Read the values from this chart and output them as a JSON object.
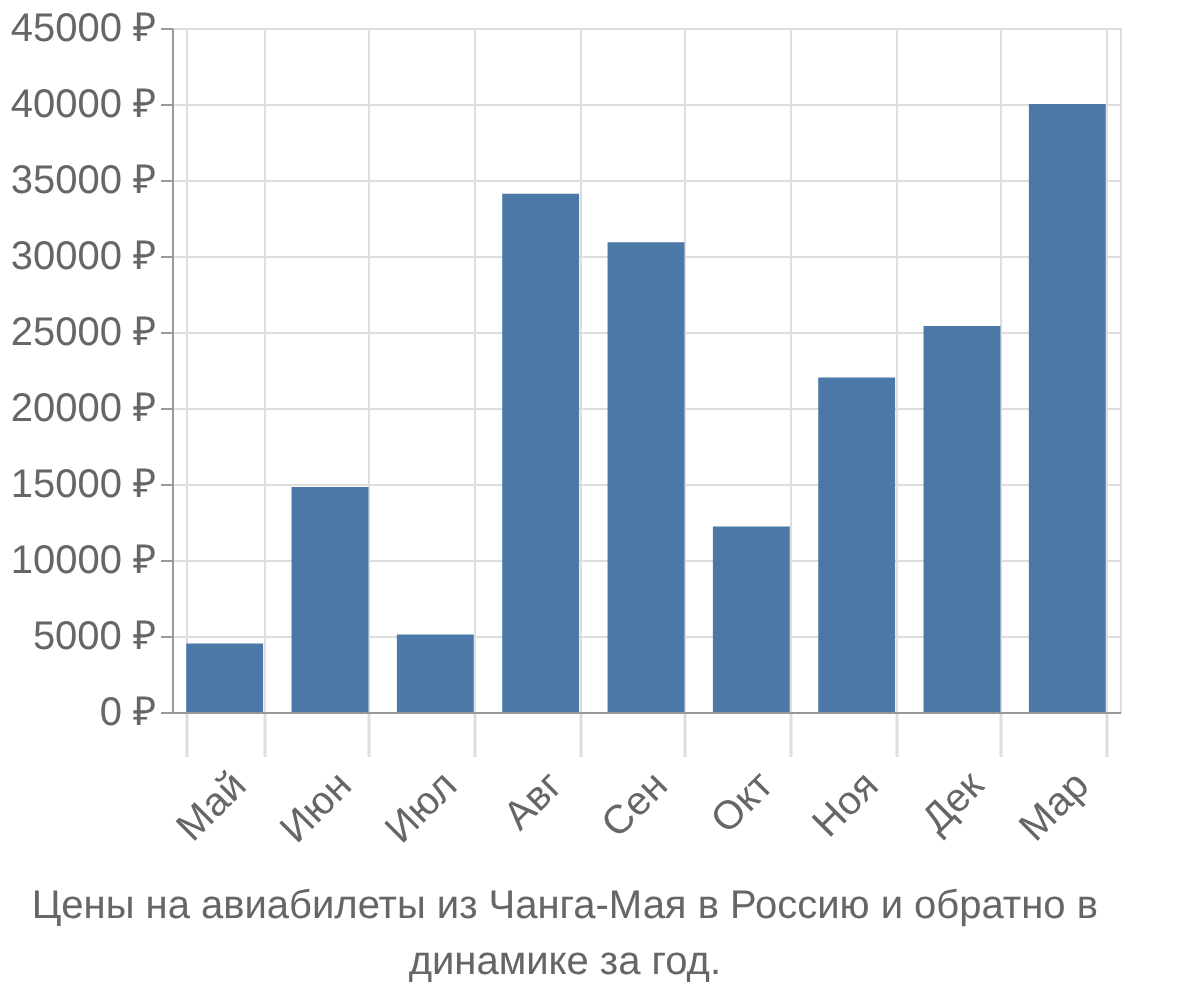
{
  "chart_data": {
    "type": "bar",
    "title": "Цены на авиабилеты из Чанга-Мая в Россию и обратно в динамике за год.",
    "categories": [
      "Май",
      "Июн",
      "Июл",
      "Авг",
      "Сен",
      "Окт",
      "Ноя",
      "Дек",
      "Мар"
    ],
    "values": [
      4500,
      14800,
      5100,
      34100,
      30900,
      12200,
      22000,
      25400,
      40000
    ],
    "color": "#4c78a8",
    "ylim": [
      0,
      45000
    ],
    "yticks": [
      {
        "value": 0,
        "label": "0 ₽"
      },
      {
        "value": 5000,
        "label": "5000 ₽"
      },
      {
        "value": 10000,
        "label": "10000 ₽"
      },
      {
        "value": 15000,
        "label": "15000 ₽"
      },
      {
        "value": 20000,
        "label": "20000 ₽"
      },
      {
        "value": 25000,
        "label": "25000 ₽"
      },
      {
        "value": 30000,
        "label": "30000 ₽"
      },
      {
        "value": 35000,
        "label": "35000 ₽"
      },
      {
        "value": 40000,
        "label": "40000 ₽"
      },
      {
        "value": 45000,
        "label": "45000 ₽"
      }
    ],
    "grid": true
  }
}
